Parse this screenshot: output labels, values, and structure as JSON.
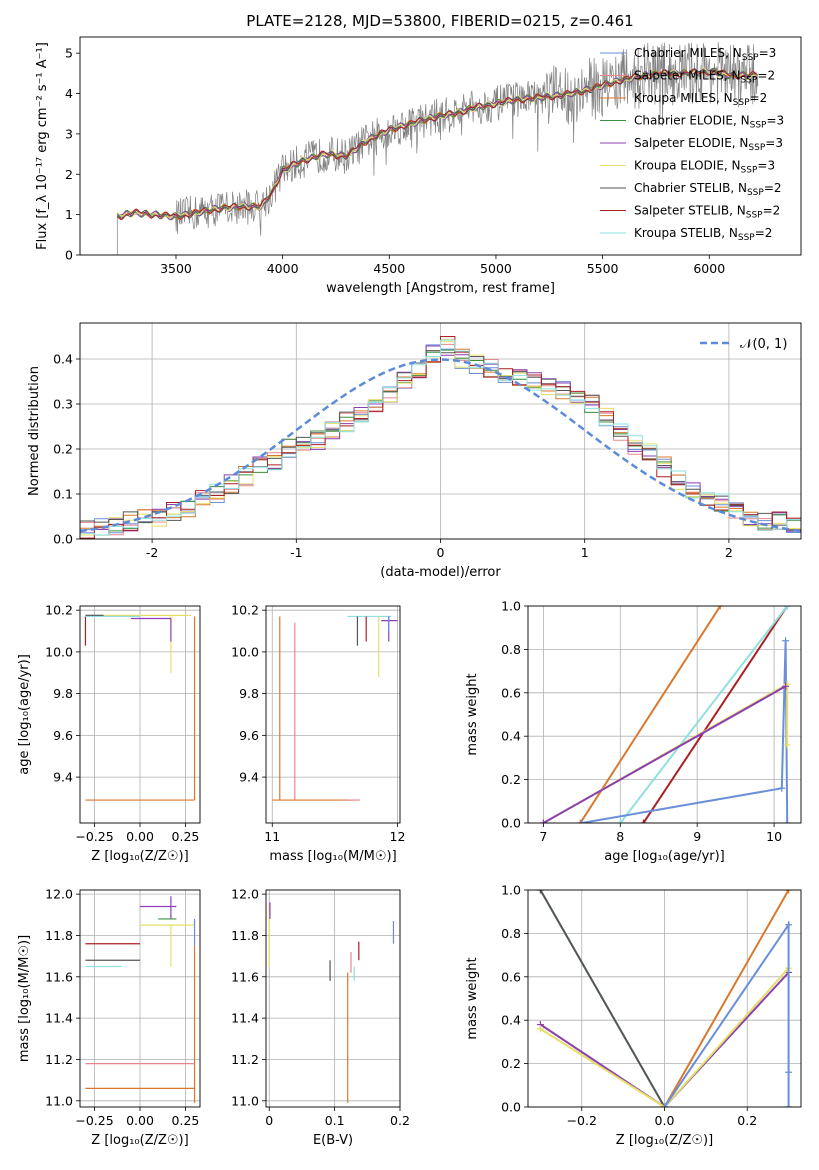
{
  "figure_title": "PLATE=2128, MJD=53800, FIBERID=0215, z=0.461",
  "colors": {
    "chabrier_miles": "#6a8fd8",
    "salpeter_miles": "#e8888e",
    "kroupa_miles": "#d9782d",
    "chabrier_elodie": "#3c8f3c",
    "salpeter_elodie": "#8b3fb1",
    "kroupa_elodie": "#e4e06a",
    "chabrier_stelib": "#555555",
    "salpeter_stelib": "#aa1f24",
    "kroupa_stelib": "#8fe0e0",
    "data": "#808080",
    "normal": "#5b8bd9"
  },
  "chart_data": [
    {
      "id": "spectrum",
      "type": "line",
      "xlabel": "wavelength [Angstrom, rest frame]",
      "ylabel": "Flux [f_λ 10⁻¹⁷ erg cm⁻² s⁻¹ A⁻¹]",
      "xlim": [
        3050,
        6430
      ],
      "ylim": [
        0,
        5.4
      ],
      "xticks": [
        3500,
        4000,
        4500,
        5000,
        5500,
        6000
      ],
      "yticks": [
        0,
        1,
        2,
        3,
        4,
        5
      ],
      "legend_position": "top-right",
      "legend": [
        {
          "label": "Chabrier MILES, N",
          "sub": "SSP",
          "tail": "=3",
          "color_key": "chabrier_miles"
        },
        {
          "label": "Salpeter MILES, N",
          "sub": "SSP",
          "tail": "=2",
          "color_key": "salpeter_miles"
        },
        {
          "label": "Kroupa MILES, N",
          "sub": "SSP",
          "tail": "=2",
          "color_key": "kroupa_miles"
        },
        {
          "label": "Chabrier ELODIE, N",
          "sub": "SSP",
          "tail": "=3",
          "color_key": "chabrier_elodie"
        },
        {
          "label": "Salpeter ELODIE, N",
          "sub": "SSP",
          "tail": "=3",
          "color_key": "salpeter_elodie"
        },
        {
          "label": "Kroupa ELODIE, N",
          "sub": "SSP",
          "tail": "=3",
          "color_key": "kroupa_elodie"
        },
        {
          "label": "Chabrier STELIB, N",
          "sub": "SSP",
          "tail": "=2",
          "color_key": "chabrier_stelib"
        },
        {
          "label": "Salpeter STELIB, N",
          "sub": "SSP",
          "tail": "=2",
          "color_key": "salpeter_stelib"
        },
        {
          "label": "Kroupa STELIB, N",
          "sub": "SSP",
          "tail": "=2",
          "color_key": "kroupa_stelib"
        }
      ],
      "continuum": [
        [
          3225,
          0.95
        ],
        [
          3300,
          1.05
        ],
        [
          3400,
          1.0
        ],
        [
          3500,
          0.95
        ],
        [
          3600,
          1.05
        ],
        [
          3700,
          1.15
        ],
        [
          3800,
          1.2
        ],
        [
          3900,
          1.2
        ],
        [
          3950,
          1.55
        ],
        [
          4000,
          2.1
        ],
        [
          4100,
          2.35
        ],
        [
          4200,
          2.5
        ],
        [
          4300,
          2.45
        ],
        [
          4400,
          2.85
        ],
        [
          4500,
          3.1
        ],
        [
          4600,
          3.25
        ],
        [
          4700,
          3.4
        ],
        [
          4800,
          3.5
        ],
        [
          4900,
          3.65
        ],
        [
          5000,
          3.75
        ],
        [
          5100,
          3.85
        ],
        [
          5200,
          3.9
        ],
        [
          5300,
          3.95
        ],
        [
          5400,
          4.05
        ],
        [
          5500,
          4.2
        ],
        [
          5600,
          4.35
        ],
        [
          5700,
          4.45
        ],
        [
          5800,
          4.5
        ],
        [
          5900,
          4.5
        ],
        [
          6000,
          4.55
        ],
        [
          6100,
          4.45
        ],
        [
          6200,
          4.45
        ]
      ]
    },
    {
      "id": "residuals",
      "type": "line",
      "xlabel": "(data-model)/error",
      "ylabel": "Normed distribution",
      "xlim": [
        -2.5,
        2.5
      ],
      "ylim": [
        0,
        0.48
      ],
      "xticks": [
        -2,
        -1,
        0,
        1,
        2
      ],
      "yticks": [
        0.0,
        0.1,
        0.2,
        0.3,
        0.4
      ],
      "legend_position": "top-right",
      "legend_label": "𝒩(0, 1)",
      "bin_edges": [
        -2.5,
        2.5
      ],
      "bins": 50,
      "histogram": [
        0.02,
        0.03,
        0.03,
        0.04,
        0.05,
        0.05,
        0.06,
        0.07,
        0.09,
        0.1,
        0.12,
        0.14,
        0.16,
        0.17,
        0.2,
        0.21,
        0.22,
        0.24,
        0.26,
        0.28,
        0.3,
        0.32,
        0.35,
        0.38,
        0.41,
        0.43,
        0.4,
        0.39,
        0.38,
        0.36,
        0.36,
        0.35,
        0.34,
        0.33,
        0.31,
        0.3,
        0.27,
        0.24,
        0.21,
        0.19,
        0.16,
        0.13,
        0.11,
        0.09,
        0.08,
        0.06,
        0.05,
        0.04,
        0.04,
        0.03
      ]
    },
    {
      "id": "age_vs_Z",
      "type": "scatter",
      "xlabel": "Z [log₁₀(Z/Z☉)]",
      "ylabel": "age  [log₁₀(age/yr)]",
      "xlim": [
        -0.33,
        0.33
      ],
      "ylim": [
        9.18,
        10.22
      ],
      "xticks": [
        -0.25,
        0.0,
        0.25
      ],
      "xtick_labels": [
        "−0.25",
        "0.00",
        "0.25"
      ],
      "yticks": [
        9.4,
        9.6,
        9.8,
        10.0,
        10.2
      ],
      "segments": [
        {
          "k": "kroupa_miles",
          "x": [
            -0.3,
            0.3
          ],
          "y": [
            9.29,
            9.29
          ]
        },
        {
          "k": "kroupa_miles",
          "x": [
            0.3,
            0.3
          ],
          "y": [
            9.29,
            10.17
          ]
        },
        {
          "k": "kroupa_elodie",
          "x": [
            -0.3,
            0.28
          ],
          "y": [
            10.175,
            10.175
          ]
        },
        {
          "k": "kroupa_elodie",
          "x": [
            0.17,
            0.17
          ],
          "y": [
            9.9,
            10.17
          ]
        },
        {
          "k": "salpeter_elodie",
          "x": [
            -0.05,
            0.17
          ],
          "y": [
            10.16,
            10.16
          ]
        },
        {
          "k": "salpeter_elodie",
          "x": [
            0.17,
            0.17
          ],
          "y": [
            10.05,
            10.16
          ]
        },
        {
          "k": "salpeter_stelib",
          "x": [
            -0.3,
            -0.3
          ],
          "y": [
            10.03,
            10.17
          ]
        },
        {
          "k": "chabrier_stelib",
          "x": [
            -0.3,
            -0.2
          ],
          "y": [
            10.175,
            10.175
          ]
        },
        {
          "k": "kroupa_stelib",
          "x": [
            -0.3,
            0.0
          ],
          "y": [
            10.17,
            10.17
          ]
        }
      ]
    },
    {
      "id": "age_vs_mass",
      "type": "scatter",
      "xlabel": "mass [log₁₀(M/M☉)]",
      "ylabel": "",
      "xlim": [
        10.95,
        12.02
      ],
      "ylim": [
        9.18,
        10.22
      ],
      "xticks": [
        11,
        12
      ],
      "yticks": [
        9.4,
        9.6,
        9.8,
        10.0,
        10.2
      ],
      "segments": [
        {
          "k": "kroupa_miles",
          "x": [
            11.0,
            11.65
          ],
          "y": [
            9.29,
            9.29
          ]
        },
        {
          "k": "kroupa_miles",
          "x": [
            11.06,
            11.06
          ],
          "y": [
            9.29,
            10.17
          ]
        },
        {
          "k": "salpeter_miles",
          "x": [
            11.18,
            11.18
          ],
          "y": [
            9.29,
            10.14
          ]
        },
        {
          "k": "salpeter_miles",
          "x": [
            11.6,
            11.7
          ],
          "y": [
            9.29,
            9.29
          ]
        },
        {
          "k": "kroupa_stelib",
          "x": [
            11.6,
            11.95
          ],
          "y": [
            10.17,
            10.17
          ]
        },
        {
          "k": "chabrier_stelib",
          "x": [
            11.68,
            11.68
          ],
          "y": [
            10.03,
            10.17
          ]
        },
        {
          "k": "salpeter_stelib",
          "x": [
            11.75,
            11.75
          ],
          "y": [
            10.05,
            10.17
          ]
        },
        {
          "k": "kroupa_elodie",
          "x": [
            11.85,
            11.85
          ],
          "y": [
            9.88,
            10.17
          ]
        },
        {
          "k": "salpeter_elodie",
          "x": [
            11.93,
            11.93
          ],
          "y": [
            10.05,
            10.17
          ]
        },
        {
          "k": "salpeter_elodie",
          "x": [
            11.87,
            12.0
          ],
          "y": [
            10.15,
            10.15
          ]
        },
        {
          "k": "chabrier_miles",
          "x": [
            11.93,
            11.93
          ],
          "y": [
            10.1,
            10.17
          ]
        }
      ]
    },
    {
      "id": "weight_vs_age",
      "type": "line",
      "xlabel": "age  [log₁₀(age/yr)]",
      "ylabel": "mass weight",
      "xlim": [
        6.8,
        10.35
      ],
      "ylim": [
        0,
        1.0
      ],
      "xticks": [
        7,
        8,
        9,
        10
      ],
      "yticks": [
        0.0,
        0.2,
        0.4,
        0.6,
        0.8,
        1.0
      ],
      "series": [
        {
          "k": "kroupa_miles",
          "x": [
            7.48,
            9.3
          ],
          "y": [
            0.0,
            1.0
          ]
        },
        {
          "k": "salpeter_stelib",
          "x": [
            8.3,
            10.17
          ],
          "y": [
            0.0,
            1.0
          ]
        },
        {
          "k": "kroupa_stelib",
          "x": [
            8.0,
            10.17
          ],
          "y": [
            0.0,
            1.0
          ]
        },
        {
          "k": "chabrier_miles",
          "x": [
            7.5,
            10.1,
            10.15,
            10.17
          ],
          "y": [
            0.0,
            0.16,
            0.84,
            0.0
          ]
        },
        {
          "k": "kroupa_elodie",
          "x": [
            7.0,
            10.17,
            10.17
          ],
          "y": [
            0.0,
            0.64,
            0.36
          ]
        },
        {
          "k": "salpeter_elodie",
          "x": [
            7.0,
            10.15
          ],
          "y": [
            0.0,
            0.63
          ]
        }
      ]
    },
    {
      "id": "mass_vs_Z",
      "type": "scatter",
      "xlabel": "Z [log₁₀(Z/Z☉)]",
      "ylabel": "mass [log₁₀(M/M☉)]",
      "xlim": [
        -0.33,
        0.33
      ],
      "ylim": [
        10.97,
        12.02
      ],
      "xticks": [
        -0.25,
        0.0,
        0.25
      ],
      "xtick_labels": [
        "−0.25",
        "0.00",
        "0.25"
      ],
      "yticks": [
        11.0,
        11.2,
        11.4,
        11.6,
        11.8,
        12.0
      ],
      "segments": [
        {
          "k": "kroupa_miles",
          "x": [
            -0.3,
            0.3
          ],
          "y": [
            11.06,
            11.06
          ]
        },
        {
          "k": "kroupa_miles",
          "x": [
            0.3,
            0.3
          ],
          "y": [
            10.99,
            11.75
          ]
        },
        {
          "k": "salpeter_miles",
          "x": [
            -0.3,
            0.3
          ],
          "y": [
            11.18,
            11.18
          ]
        },
        {
          "k": "kroupa_stelib",
          "x": [
            -0.3,
            -0.1
          ],
          "y": [
            11.65,
            11.65
          ]
        },
        {
          "k": "chabrier_stelib",
          "x": [
            -0.3,
            0.0
          ],
          "y": [
            11.68,
            11.68
          ]
        },
        {
          "k": "salpeter_stelib",
          "x": [
            -0.3,
            0.0
          ],
          "y": [
            11.76,
            11.76
          ]
        },
        {
          "k": "salpeter_elodie",
          "x": [
            0.0,
            0.2
          ],
          "y": [
            11.94,
            11.94
          ]
        },
        {
          "k": "salpeter_elodie",
          "x": [
            0.17,
            0.17
          ],
          "y": [
            11.88,
            11.99
          ]
        },
        {
          "k": "chabrier_elodie",
          "x": [
            0.1,
            0.2
          ],
          "y": [
            11.88,
            11.88
          ]
        },
        {
          "k": "kroupa_elodie",
          "x": [
            0.0,
            0.3
          ],
          "y": [
            11.85,
            11.85
          ]
        },
        {
          "k": "kroupa_elodie",
          "x": [
            0.17,
            0.17
          ],
          "y": [
            11.65,
            11.85
          ]
        },
        {
          "k": "chabrier_miles",
          "x": [
            0.3,
            0.3
          ],
          "y": [
            11.75,
            11.88
          ]
        }
      ]
    },
    {
      "id": "mass_vs_ebv",
      "type": "scatter",
      "xlabel": "E(B-V)",
      "ylabel": "",
      "xlim": [
        -0.005,
        0.2
      ],
      "ylim": [
        10.97,
        12.02
      ],
      "xticks": [
        0.0,
        0.1,
        0.2
      ],
      "yticks": [
        11.0,
        11.2,
        11.4,
        11.6,
        11.8,
        12.0
      ],
      "segments": [
        {
          "k": "kroupa_elodie",
          "x": [
            0.0,
            0.0
          ],
          "y": [
            11.65,
            11.95
          ]
        },
        {
          "k": "salpeter_elodie",
          "x": [
            0.001,
            0.001
          ],
          "y": [
            11.88,
            11.96
          ]
        },
        {
          "k": "chabrier_stelib",
          "x": [
            0.093,
            0.093
          ],
          "y": [
            11.58,
            11.68
          ]
        },
        {
          "k": "kroupa_miles",
          "x": [
            0.12,
            0.12
          ],
          "y": [
            10.99,
            11.62
          ]
        },
        {
          "k": "salpeter_miles",
          "x": [
            0.125,
            0.125
          ],
          "y": [
            11.62,
            11.72
          ]
        },
        {
          "k": "kroupa_stelib",
          "x": [
            0.13,
            0.13
          ],
          "y": [
            11.58,
            11.65
          ]
        },
        {
          "k": "salpeter_stelib",
          "x": [
            0.137,
            0.137
          ],
          "y": [
            11.68,
            11.77
          ]
        },
        {
          "k": "chabrier_miles",
          "x": [
            0.19,
            0.19
          ],
          "y": [
            11.76,
            11.87
          ]
        }
      ]
    },
    {
      "id": "weight_vs_Z",
      "type": "line",
      "xlabel": "Z [log₁₀(Z/Z☉)]",
      "ylabel": "mass weight",
      "xlim": [
        -0.33,
        0.33
      ],
      "ylim": [
        0,
        1.0
      ],
      "xticks": [
        -0.2,
        0.0,
        0.2
      ],
      "xtick_labels": [
        "−0.2",
        "0.0",
        "0.2"
      ],
      "yticks": [
        0.0,
        0.2,
        0.4,
        0.6,
        0.8,
        1.0
      ],
      "series": [
        {
          "k": "kroupa_stelib",
          "x": [
            -0.3,
            0.0
          ],
          "y": [
            1.0,
            0.0
          ]
        },
        {
          "k": "chabrier_stelib",
          "x": [
            -0.3,
            0.0
          ],
          "y": [
            1.0,
            0.0
          ]
        },
        {
          "k": "kroupa_miles",
          "x": [
            0.0,
            0.3
          ],
          "y": [
            0.0,
            1.0
          ]
        },
        {
          "k": "salpeter_elodie",
          "x": [
            -0.3,
            0.0,
            0.3
          ],
          "y": [
            0.38,
            0.0,
            0.62
          ]
        },
        {
          "k": "kroupa_elodie",
          "x": [
            -0.3,
            0.0,
            0.3
          ],
          "y": [
            0.36,
            0.0,
            0.64
          ]
        },
        {
          "k": "chabrier_miles",
          "x": [
            0.0,
            0.3,
            0.3,
            0.3
          ],
          "y": [
            0.0,
            0.84,
            0.16,
            0.0
          ]
        }
      ]
    }
  ]
}
